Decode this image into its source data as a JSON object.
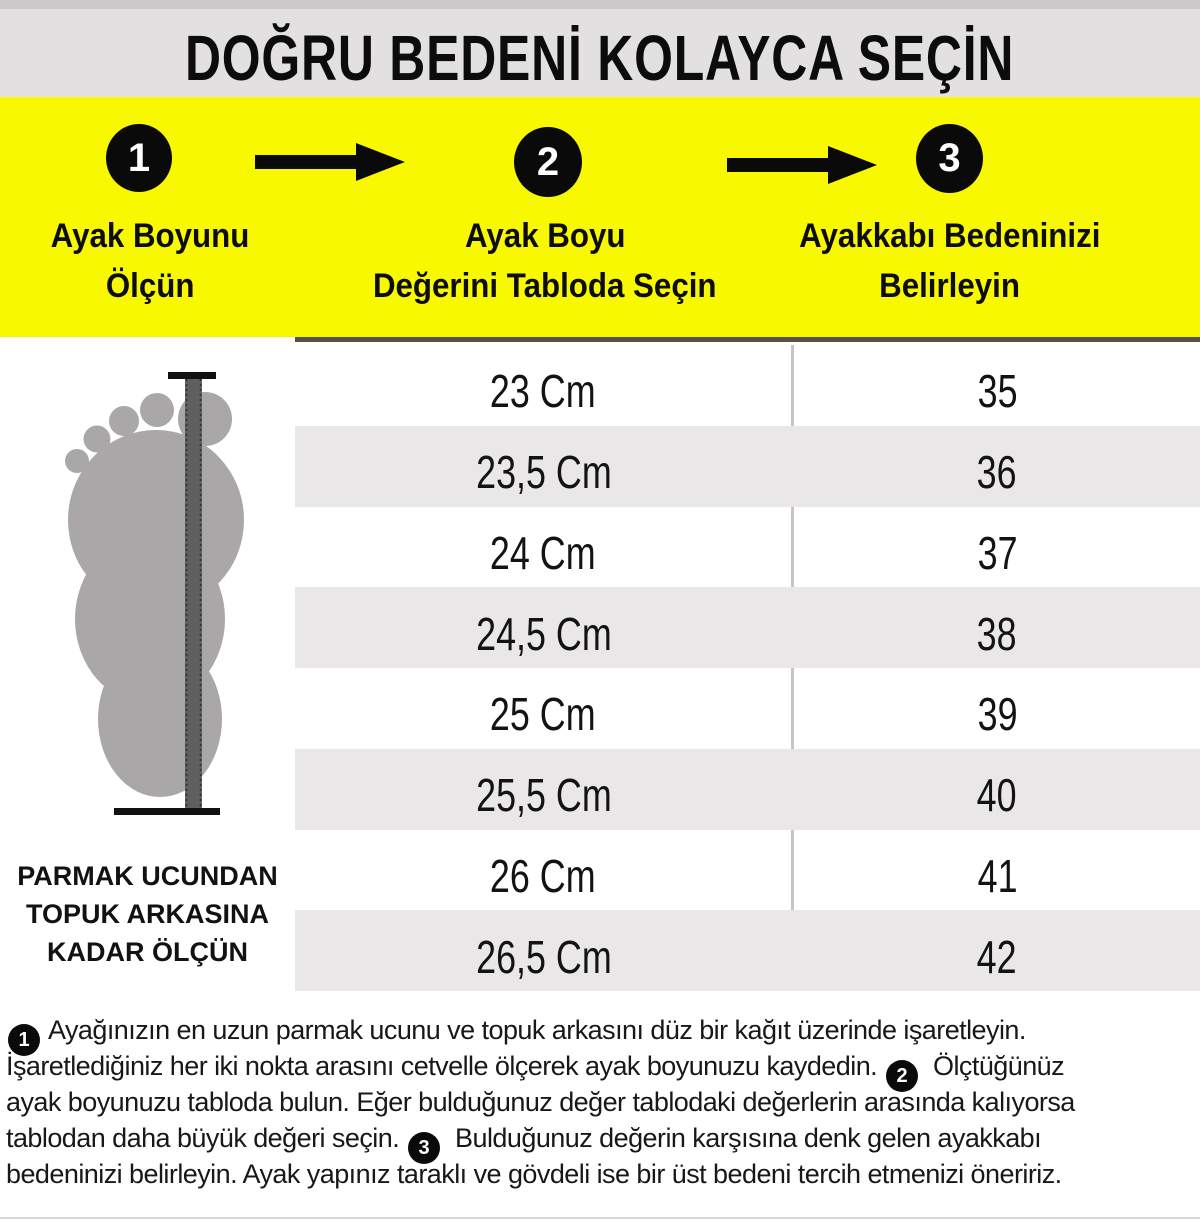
{
  "title": "DOĞRU BEDENİ KOLAYCA SEÇİN",
  "colors": {
    "banner_yellow": "#f8f800",
    "title_bar_gray": "#e2e0e1",
    "stripe_gray": "#e9e7e8",
    "badge_black": "#0a0a0a",
    "foot_gray": "#a9a7a7",
    "ruler_gray": "#5f5f5f"
  },
  "steps": [
    {
      "number": "1",
      "label_line1": "Ayak Boyunu",
      "label_line2": "Ölçün"
    },
    {
      "number": "2",
      "label_line1": "Ayak Boyu",
      "label_line2": "Değerini Tabloda Seçin"
    },
    {
      "number": "3",
      "label_line1": "Ayakkabı Bedeninizi",
      "label_line2": "Belirleyin"
    }
  ],
  "icons": [
    {
      "name": "arrow-right-icon",
      "count": 2
    },
    {
      "name": "foot-measure-illustration",
      "description": "gray footprint with vertical ruler and end caps"
    }
  ],
  "foot": {
    "caption_lines": [
      "PARMAK UCUNDAN",
      "TOPUK ARKASINA",
      "KADAR ÖLÇÜN"
    ]
  },
  "size_table": {
    "rows": [
      {
        "cm": "23 Cm",
        "size": "35"
      },
      {
        "cm": "23,5 Cm",
        "size": "36"
      },
      {
        "cm": "24 Cm",
        "size": "37"
      },
      {
        "cm": "24,5 Cm",
        "size": "38"
      },
      {
        "cm": "25 Cm",
        "size": "39"
      },
      {
        "cm": "25,5 Cm",
        "size": "40"
      },
      {
        "cm": "26 Cm",
        "size": "41"
      },
      {
        "cm": "26,5 Cm",
        "size": "42"
      }
    ]
  },
  "instructions": {
    "lines": [
      [
        {
          "badge": "1"
        },
        {
          "text": "Ayağınızın en uzun parmak ucunu ve topuk arkasını düz bir kağıt üzerinde işaretleyin."
        }
      ],
      [
        {
          "text": "İşaretlediğiniz her iki nokta arasını cetvelle ölçerek ayak boyunuzu kaydedin. "
        },
        {
          "badge": "2"
        },
        {
          "text": " Ölçtüğünüz"
        }
      ],
      [
        {
          "text": "ayak boyunuzu tabloda bulun. Eğer bulduğunuz değer tablodaki değerlerin arasında kalıyorsa"
        }
      ],
      [
        {
          "text": "tablodan daha büyük değeri seçin. "
        },
        {
          "badge": "3"
        },
        {
          "text": " Bulduğunuz değerin karşısına denk gelen ayakkabı"
        }
      ],
      [
        {
          "text": "bedeninizi belirleyin. Ayak yapınız taraklı ve gövdeli ise bir üst bedeni tercih etmenizi öneririz."
        }
      ]
    ]
  }
}
